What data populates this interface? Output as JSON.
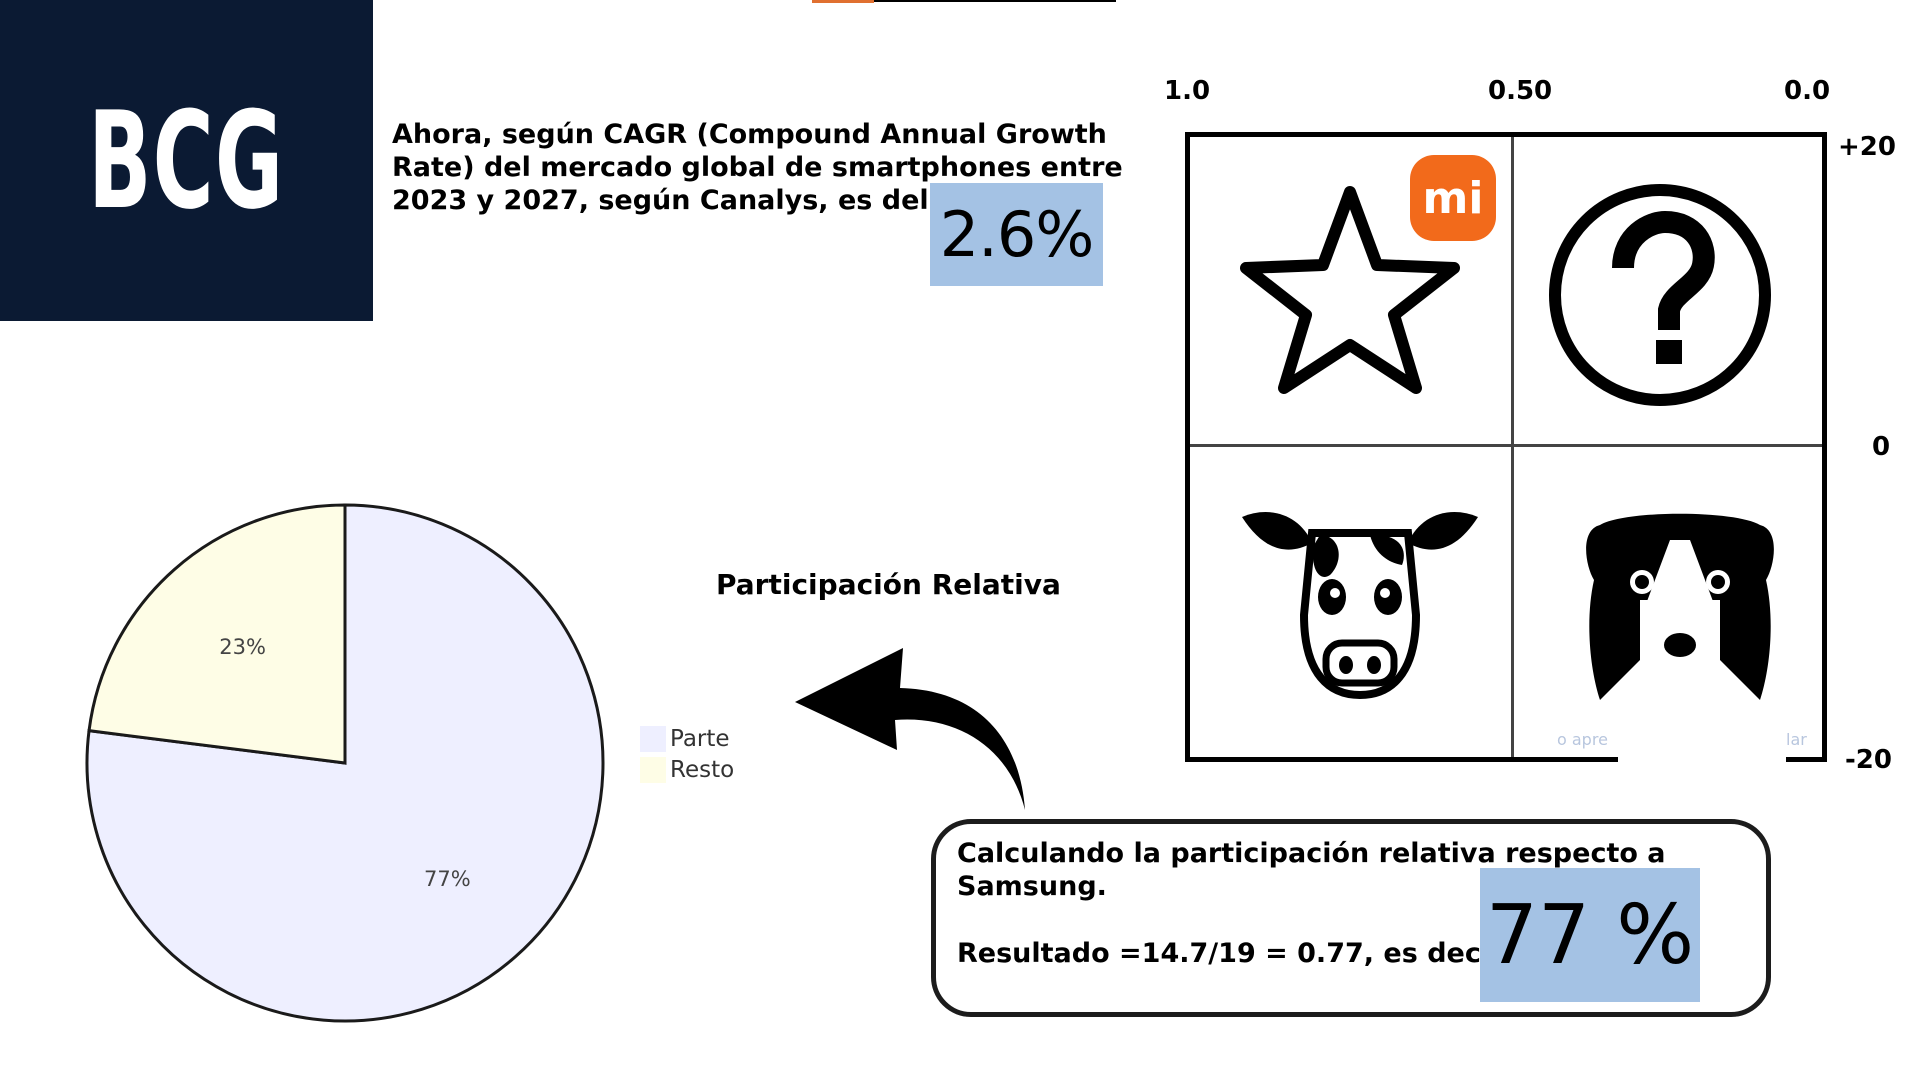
{
  "logo": {
    "text": "BCG",
    "background": "#0b1a33"
  },
  "cagr": {
    "text": "Ahora, según CAGR (Compound Annual Growth Rate) del mercado global de smartphones entre 2023 y 2027, según Canalys, es del",
    "value": "2.6%",
    "highlight_color": "#a4c2e4"
  },
  "matrix": {
    "x_axis_labels": [
      "1.0",
      "0.50",
      "0.0"
    ],
    "y_axis_labels": [
      "+20",
      "0",
      "-20"
    ],
    "quadrants": [
      {
        "icon": "star-icon"
      },
      {
        "icon": "question-icon"
      },
      {
        "icon": "cow-icon"
      },
      {
        "icon": "dog-icon"
      }
    ],
    "brand_logo": {
      "icon": "xiaomi-logo",
      "text": "mi",
      "color": "#f26a1b"
    },
    "watermark_left": "o apre",
    "watermark_right": "lar"
  },
  "relative_share": {
    "title": "Participación Relativa"
  },
  "chart_data": {
    "type": "pie",
    "categories": [
      "Parte",
      "Resto"
    ],
    "values": [
      77,
      23
    ],
    "labels": [
      "77%",
      "23%"
    ],
    "colors": [
      "#eeefff",
      "#fefde6"
    ],
    "legend": [
      "Parte",
      "Resto"
    ],
    "legend_position": "right"
  },
  "result": {
    "line1": "Calculando la participación relativa respecto a Samsung.",
    "line2": "Resultado =14.7/19 = 0.77, es decir,",
    "value": "77 %",
    "highlight_color": "#a4c2e4"
  }
}
